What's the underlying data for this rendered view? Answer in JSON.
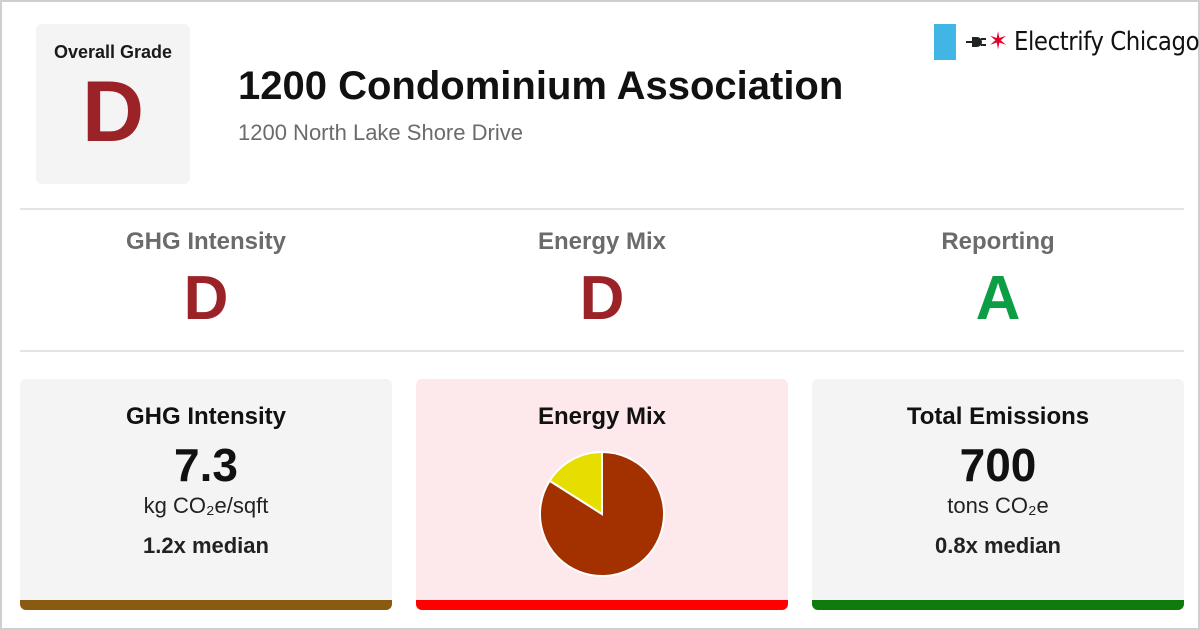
{
  "overall": {
    "label": "Overall Grade",
    "grade": "D",
    "grade_color": "#9b2226"
  },
  "building": {
    "name": "1200 Condominium Association",
    "address": "1200 North Lake Shore Drive"
  },
  "brand": {
    "name": "Electrify Chicago",
    "flag_icon": "chicago-flag-stripe-icon",
    "plug_icon": "plug-icon",
    "star_icon": "red-star-icon",
    "flag_color": "#41b6e6",
    "star_color": "#e4002b"
  },
  "subgrades": [
    {
      "label": "GHG Intensity",
      "grade": "D",
      "color": "#9b2226"
    },
    {
      "label": "Energy Mix",
      "grade": "D",
      "color": "#9b2226"
    },
    {
      "label": "Reporting",
      "grade": "A",
      "color": "#0d9d45"
    }
  ],
  "cards": {
    "ghg": {
      "title": "GHG Intensity",
      "value": "7.3",
      "unit": "kg CO₂e/sqft",
      "median": "1.2x median",
      "bg": "#f4f4f4",
      "bar_color": "#8a5a12"
    },
    "mix": {
      "title": "Energy Mix",
      "bg": "#fde9ec",
      "bar_color": "#ff0000"
    },
    "emissions": {
      "title": "Total Emissions",
      "value": "700",
      "unit": "tons CO₂e",
      "median": "0.8x median",
      "bg": "#f4f4f4",
      "bar_color": "#117a0f"
    }
  },
  "chart_data": {
    "type": "pie",
    "slices": [
      {
        "value": 0.84,
        "color": "#a33100"
      },
      {
        "value": 0.16,
        "color": "#e6de00"
      }
    ]
  }
}
